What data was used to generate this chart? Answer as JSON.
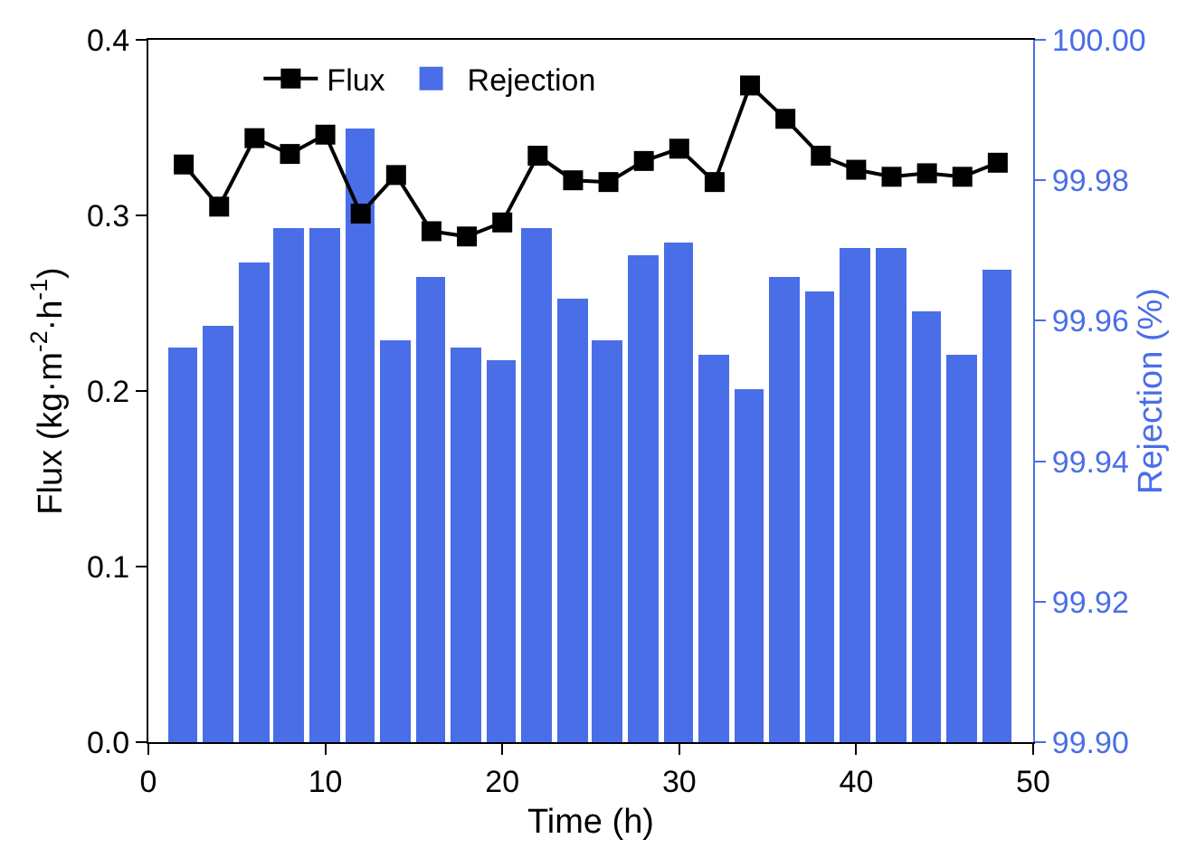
{
  "chart_data": {
    "type": "line",
    "xlabel": "Time (h)",
    "ylabel": "Flux (kg·m$^{-2}$·h$^{-1}$)",
    "y2label": "Rejection (%)",
    "x": [
      2,
      4,
      6,
      8,
      10,
      12,
      14,
      16,
      18,
      20,
      22,
      24,
      26,
      28,
      30,
      32,
      34,
      36,
      38,
      40,
      42,
      44,
      46,
      48
    ],
    "series": [
      {
        "name": "Flux",
        "color": "#000000",
        "marker": "square",
        "line_style": "solid",
        "values": [
          0.329,
          0.305,
          0.344,
          0.335,
          0.346,
          0.301,
          0.323,
          0.291,
          0.288,
          0.296,
          0.334,
          0.32,
          0.319,
          0.331,
          0.338,
          0.319,
          0.374,
          0.355,
          0.334,
          0.326,
          0.322,
          0.324,
          0.322,
          0.33
        ]
      },
      {
        "name": "Rejection",
        "type": "bar",
        "axis": "y2",
        "color": "#4a6ee8",
        "values": [
          99.956,
          99.959,
          99.968,
          99.973,
          99.973,
          99.987,
          99.957,
          99.966,
          99.956,
          99.954,
          99.973,
          99.963,
          99.957,
          99.969,
          99.971,
          99.955,
          99.95,
          99.966,
          99.964,
          99.97,
          99.97,
          99.961,
          99.955,
          99.967
        ]
      }
    ],
    "xlim": [
      0,
      50
    ],
    "xticks": [
      0,
      10,
      20,
      30,
      40,
      50
    ],
    "ylim": [
      0,
      0.4
    ],
    "yticks": [
      {
        "value": 0,
        "label": "0.0"
      },
      0.1,
      0.2,
      0.3,
      0.4
    ],
    "y2lim": [
      99.9,
      100
    ],
    "y2ticks": [
      {
        "value": 99.9,
        "label": "99.90"
      },
      {
        "value": 99.92,
        "label": "99.92"
      },
      {
        "value": 99.94,
        "label": "99.94"
      },
      {
        "value": 99.96,
        "label": "99.96"
      },
      {
        "value": 99.98,
        "label": "99.98"
      },
      {
        "value": 100,
        "label": "100.00"
      }
    ],
    "legend": "top",
    "grid": false
  }
}
